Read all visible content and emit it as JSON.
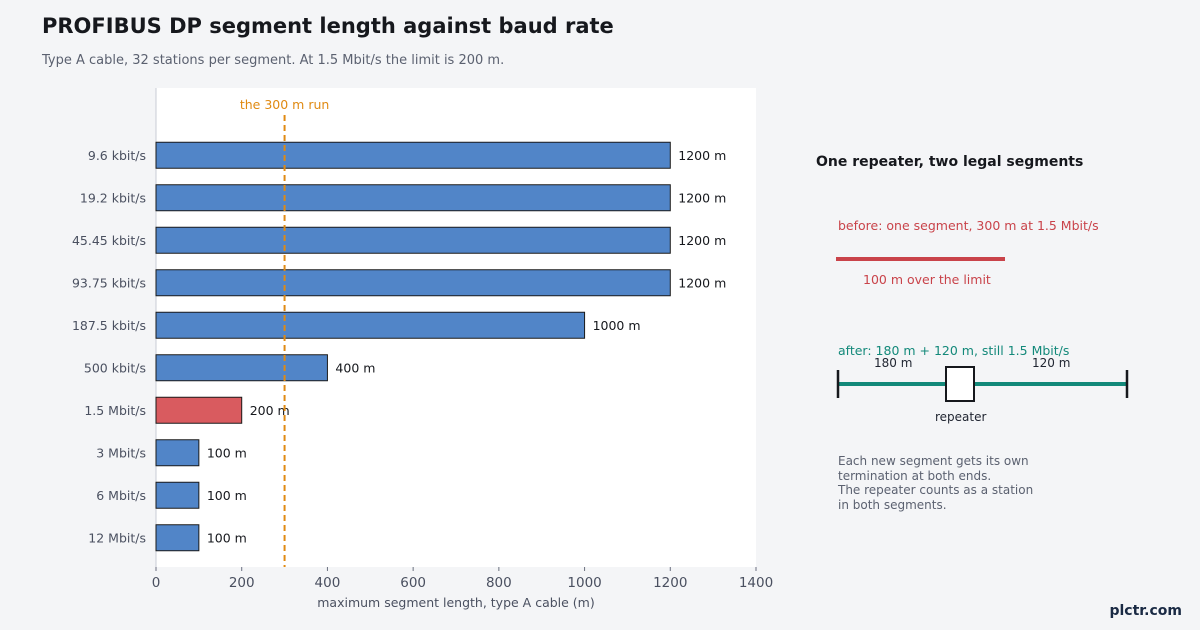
{
  "header": {
    "title": "PROFIBUS DP segment length against baud rate",
    "subtitle": "Type A cable, 32 stations per segment. At 1.5 Mbit/s the limit is 200 m."
  },
  "chart_data": {
    "type": "bar",
    "orientation": "horizontal",
    "categories": [
      "9.6 kbit/s",
      "19.2 kbit/s",
      "45.45 kbit/s",
      "93.75 kbit/s",
      "187.5 kbit/s",
      "500 kbit/s",
      "1.5 Mbit/s",
      "3 Mbit/s",
      "6 Mbit/s",
      "12 Mbit/s"
    ],
    "values": [
      1200,
      1200,
      1200,
      1200,
      1000,
      400,
      200,
      100,
      100,
      100
    ],
    "value_labels": [
      "1200 m",
      "1200 m",
      "1200 m",
      "1200 m",
      "1000 m",
      "400 m",
      "200 m",
      "100 m",
      "100 m",
      "100 m"
    ],
    "highlight_category": "1.5 Mbit/s",
    "xlabel": "maximum segment length, type A cable (m)",
    "ylabel": "",
    "xlim": [
      0,
      1400
    ],
    "xticks": [
      0,
      200,
      400,
      600,
      800,
      1000,
      1200,
      1400
    ],
    "reference_line": {
      "x": 300,
      "label": "the 300 m run"
    },
    "grid": false,
    "colors": {
      "bar": "#5185c8",
      "highlight": "#d95b5f",
      "reference": "#e08a12",
      "bar_edge": "#1a1a1a"
    }
  },
  "sidebar": {
    "title": "One repeater, two legal segments",
    "before_label": "before: one segment, 300 m at 1.5 Mbit/s",
    "over_label": "100 m over the limit",
    "after_label": "after: 180 m + 120 m, still 1.5 Mbit/s",
    "segment_a_label": "180 m",
    "segment_b_label": "120 m",
    "repeater_label": "repeater",
    "segment_a_m": 180,
    "segment_b_m": 120,
    "note_lines": [
      "Each new segment gets its own",
      "termination at both ends.",
      "The repeater counts as a station",
      "in both segments."
    ],
    "colors": {
      "before": "#c9434a",
      "after": "#13897a"
    }
  },
  "brand": "plctr.com"
}
